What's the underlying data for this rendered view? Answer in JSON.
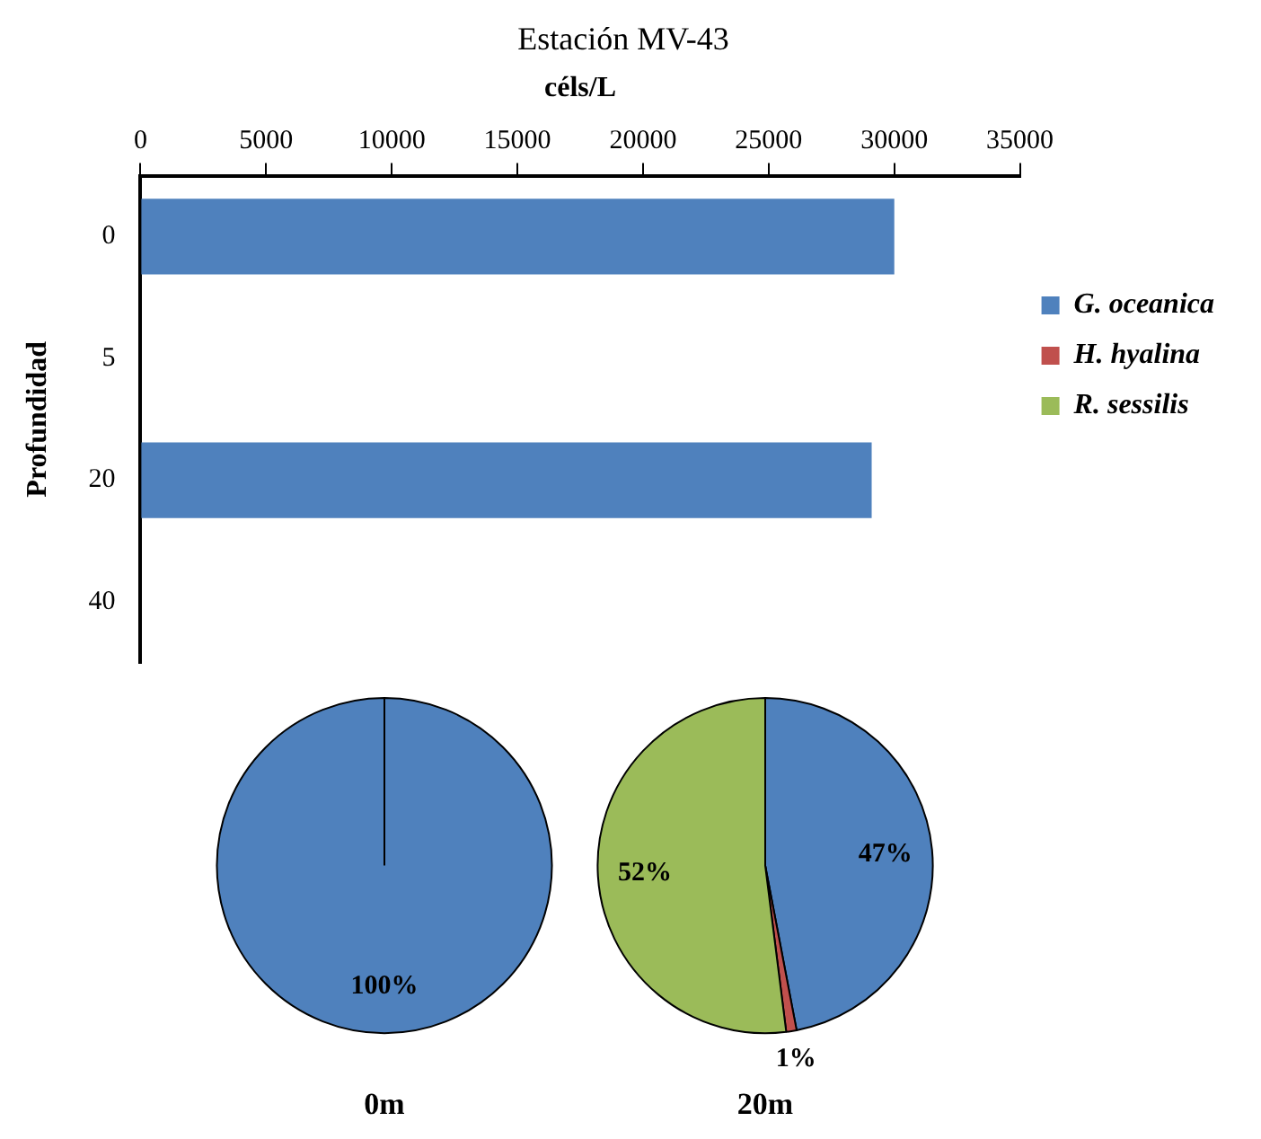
{
  "chart_data": [
    {
      "type": "bar",
      "orientation": "horizontal",
      "stacked": true,
      "title": "Estación MV-43",
      "xlabel": "céls/L",
      "ylabel": "Profundidad",
      "categories": [
        "0",
        "5",
        "20",
        "40"
      ],
      "series": [
        {
          "name": "G. oceanica",
          "color": "#4f81bd",
          "values": [
            30000,
            null,
            29100,
            null
          ]
        },
        {
          "name": "H. hyalina",
          "color": "#c0504d",
          "values": [
            null,
            null,
            null,
            null
          ]
        },
        {
          "name": "R. sessilis",
          "color": "#9bbb59",
          "values": [
            null,
            null,
            null,
            null
          ]
        }
      ],
      "xlim": [
        0,
        35000
      ],
      "xticks": [
        0,
        5000,
        10000,
        15000,
        20000,
        25000,
        30000,
        35000
      ],
      "grid": false,
      "legend": "right"
    },
    {
      "type": "pie",
      "title": "0m",
      "categories": [
        null,
        null,
        null
      ],
      "values": [
        100,
        0,
        0
      ],
      "colors": [
        "#4f81bd",
        "#c0504d",
        "#9bbb59"
      ],
      "value_labels": [
        "100%",
        null,
        null
      ],
      "legend": false
    },
    {
      "type": "pie",
      "title": "20m",
      "categories": [
        null,
        null,
        null
      ],
      "values": [
        47,
        1,
        52
      ],
      "colors": [
        "#4f81bd",
        "#c0504d",
        "#9bbb59"
      ],
      "value_labels": [
        "47%",
        "1%",
        "52%"
      ],
      "legend": false
    }
  ]
}
